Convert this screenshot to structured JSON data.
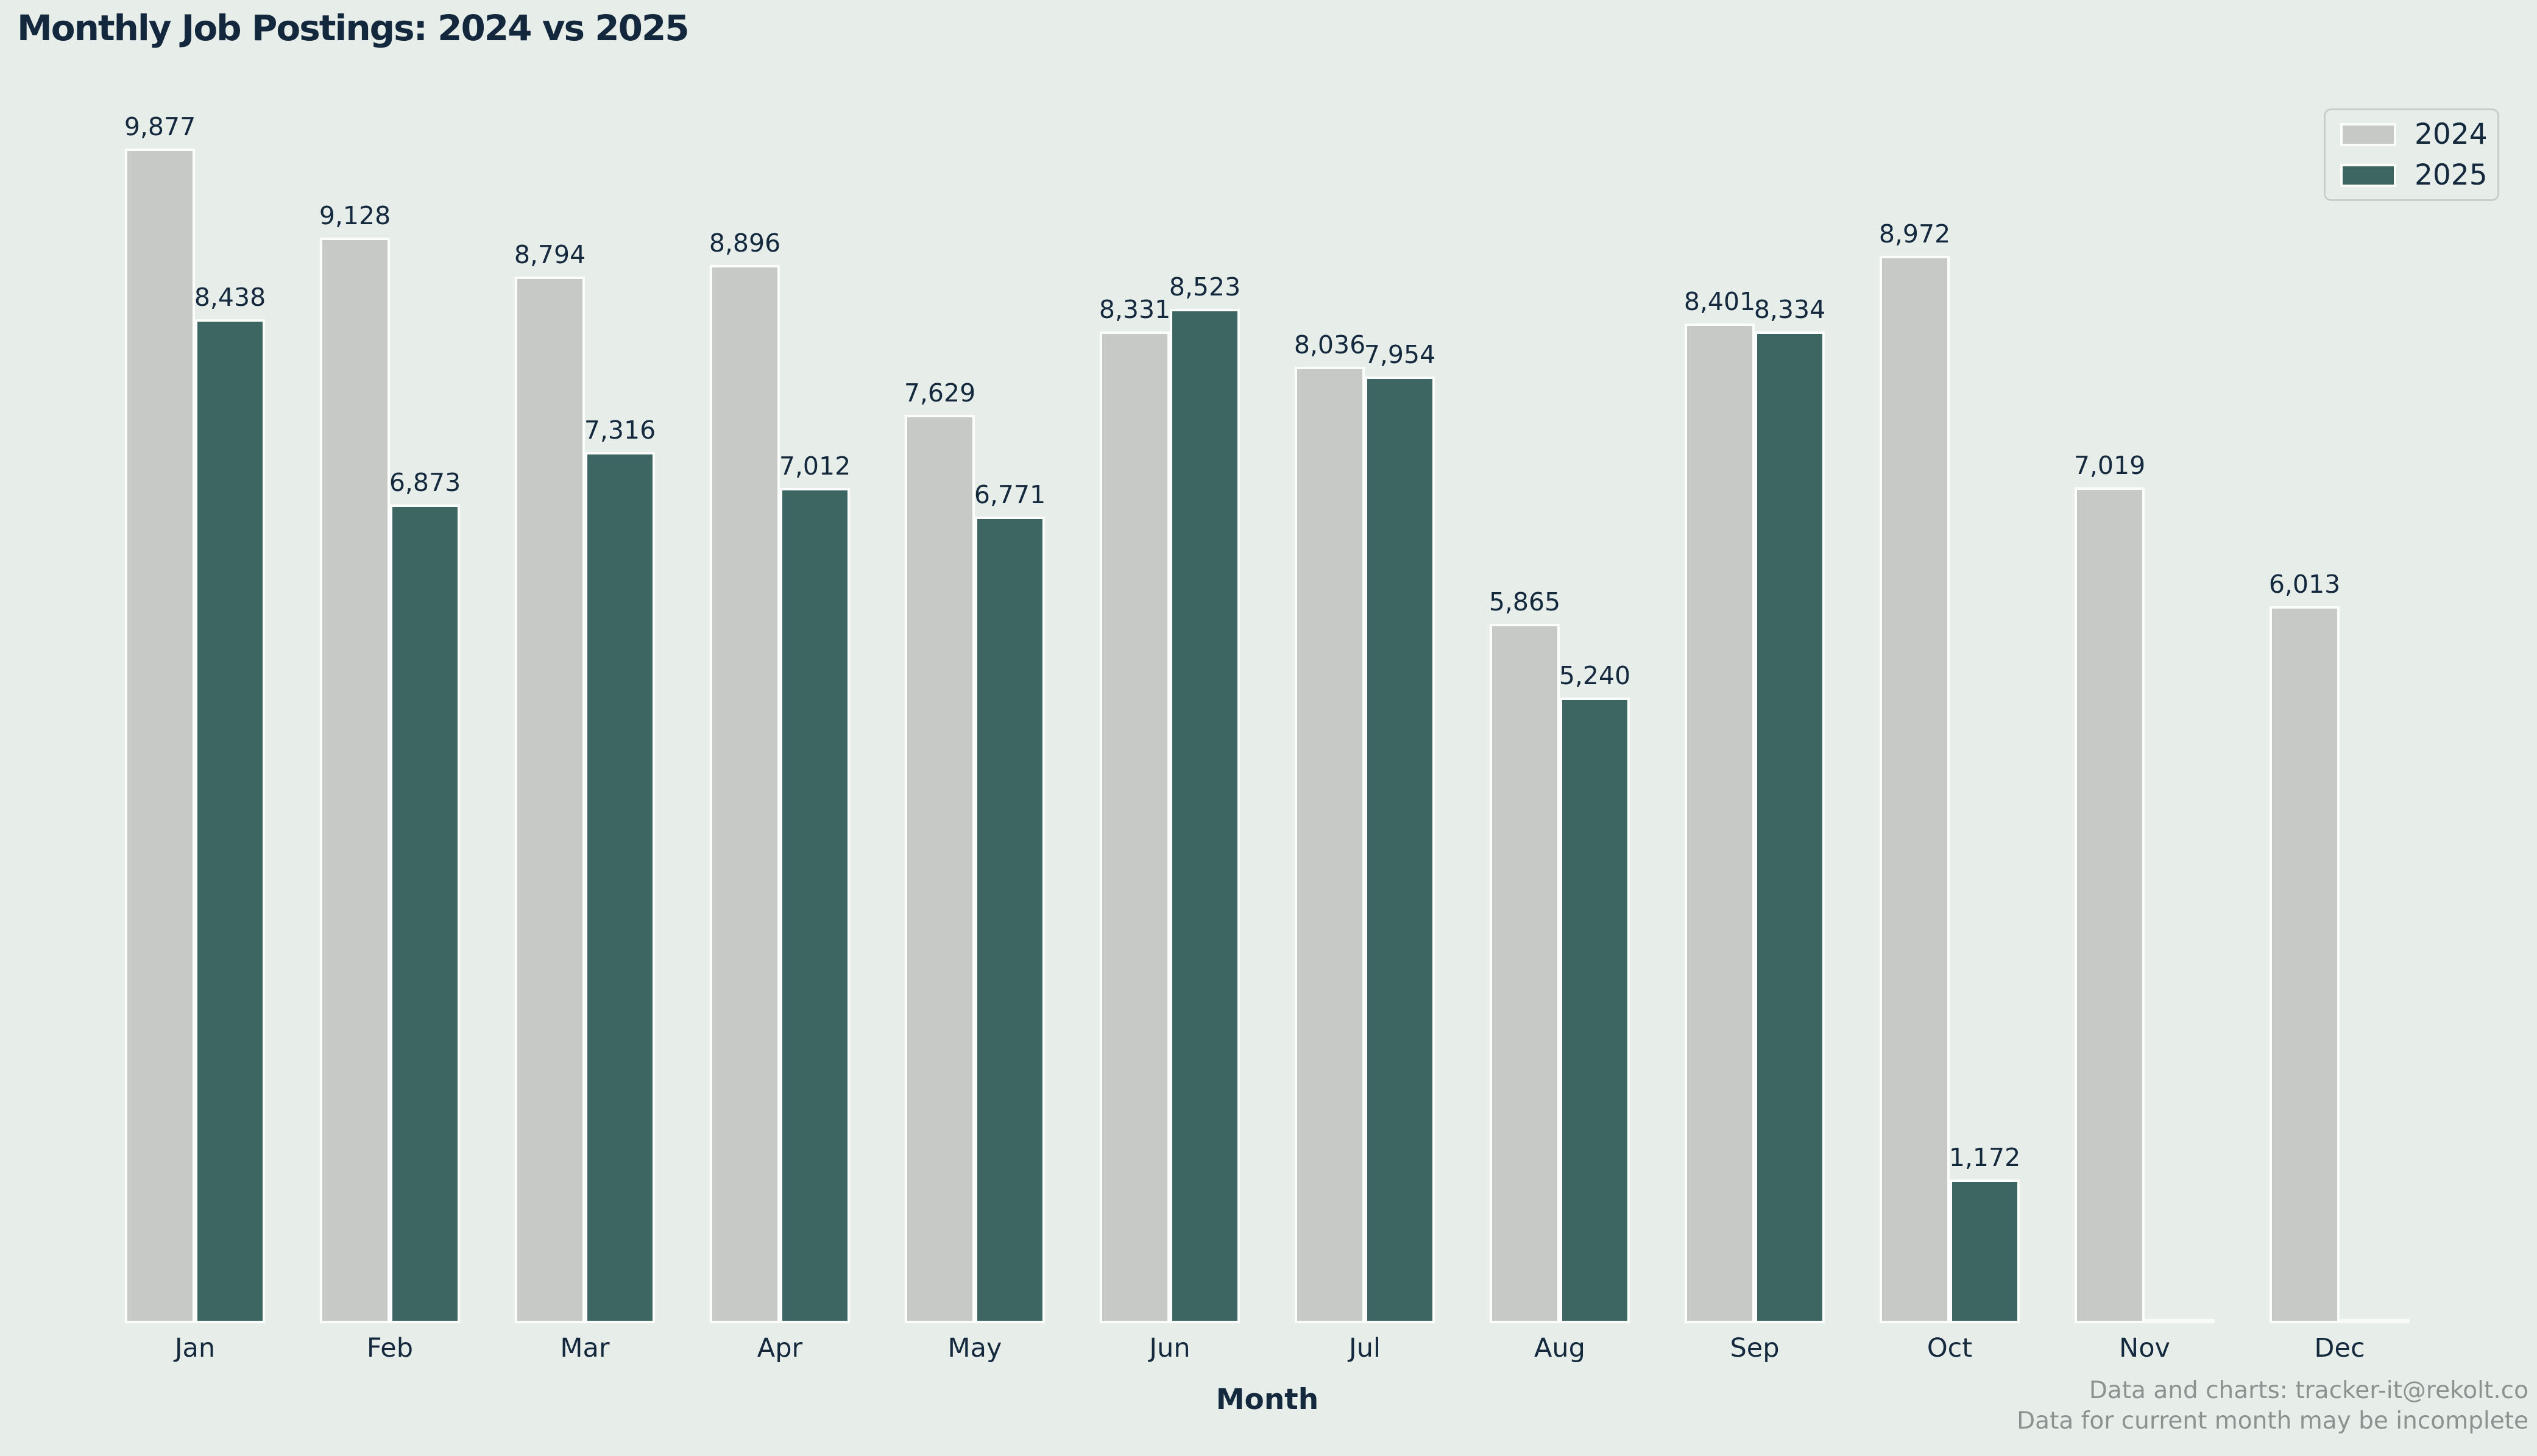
{
  "title": "Monthly Job Postings: 2024 vs 2025",
  "xlabel": "Month",
  "legend": {
    "position": "upper right",
    "items": [
      {
        "label": "2024",
        "color": "#c7c9c7"
      },
      {
        "label": "2025",
        "color": "#3d6561"
      }
    ]
  },
  "footer": {
    "line1": "Data and charts: tracker-it@rekolt.co",
    "line2": "Data for current month may be incomplete"
  },
  "colors": {
    "background": "#e7eeea",
    "bar_2024": "#c7c9c7",
    "bar_2025": "#3d6561",
    "bar_edge": "#fbfdfc",
    "text": "#14293d",
    "footer_text": "#8b9391",
    "legend_border": "#c6cfcc"
  },
  "chart_data": {
    "type": "bar",
    "title": "Monthly Job Postings: 2024 vs 2025",
    "xlabel": "Month",
    "ylabel": "",
    "grid": false,
    "legend_position": "upper right",
    "value_labels_shown": true,
    "number_format": "thousands-comma",
    "ylim": [
      0,
      11000
    ],
    "categories": [
      "Jan",
      "Feb",
      "Mar",
      "Apr",
      "May",
      "Jun",
      "Jul",
      "Aug",
      "Sep",
      "Oct",
      "Nov",
      "Dec"
    ],
    "series": [
      {
        "name": "2024",
        "values": [
          9877,
          9128,
          8794,
          8896,
          7629,
          8331,
          8036,
          5865,
          8401,
          8972,
          7019,
          6013
        ]
      },
      {
        "name": "2025",
        "values": [
          8438,
          6873,
          7316,
          7012,
          6771,
          8523,
          7954,
          5240,
          8334,
          1172,
          null,
          null
        ]
      }
    ]
  }
}
